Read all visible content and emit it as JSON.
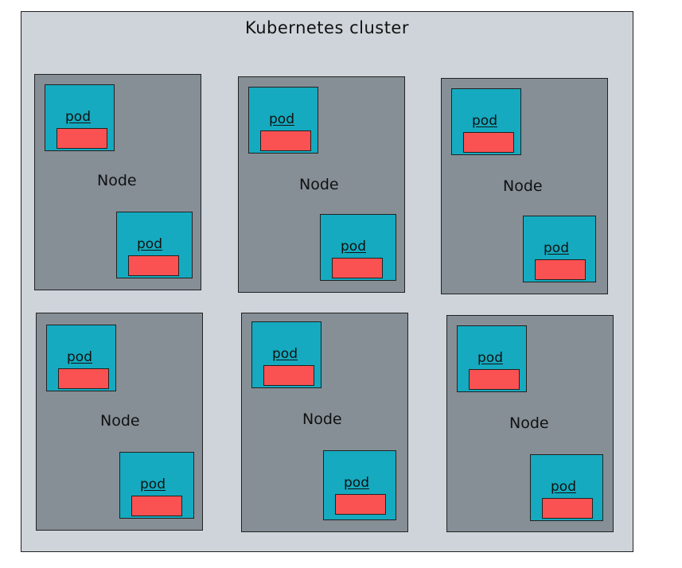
{
  "cluster": {
    "title": "Kubernetes cluster",
    "colors": {
      "cluster": "#ced4da",
      "node": "#868e96",
      "pod": "#15aabf",
      "container": "#fa5252"
    }
  },
  "nodes": [
    {
      "label": "Node",
      "pods": [
        {
          "label": "pod"
        },
        {
          "label": "pod"
        }
      ]
    },
    {
      "label": "Node",
      "pods": [
        {
          "label": "pod"
        },
        {
          "label": "pod"
        }
      ]
    },
    {
      "label": "Node",
      "pods": [
        {
          "label": "pod"
        },
        {
          "label": "pod"
        }
      ]
    },
    {
      "label": "Node",
      "pods": [
        {
          "label": "pod"
        },
        {
          "label": "pod"
        }
      ]
    },
    {
      "label": "Node",
      "pods": [
        {
          "label": "pod"
        },
        {
          "label": "pod"
        }
      ]
    },
    {
      "label": "Node",
      "pods": [
        {
          "label": "pod"
        },
        {
          "label": "pod"
        }
      ]
    }
  ]
}
